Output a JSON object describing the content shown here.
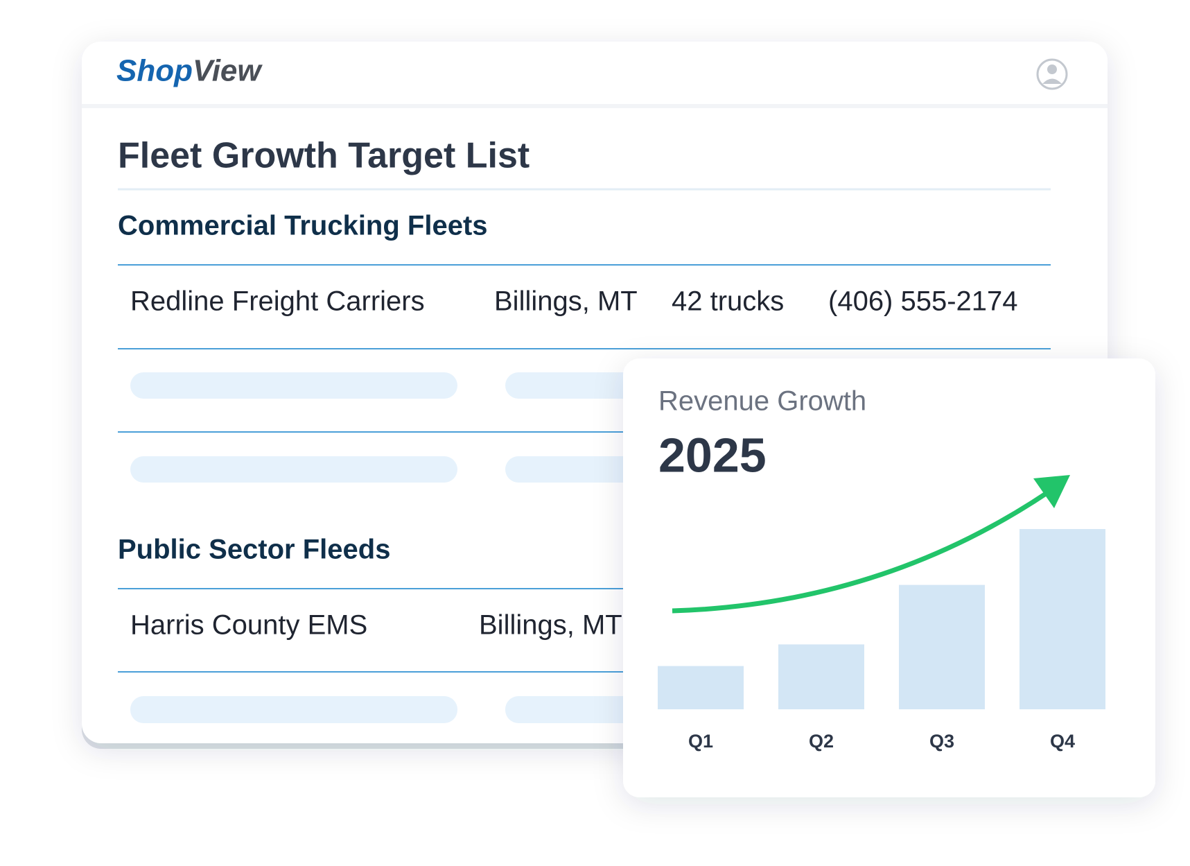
{
  "header": {
    "logo": "ShopView"
  },
  "page": {
    "title": "Fleet Growth Target List",
    "sections": [
      {
        "title": "Commercial Trucking Fleets",
        "rows": [
          [
            "Redline Freight Carriers",
            "Billings, MT",
            "42 trucks",
            "(406) 555-2174"
          ]
        ]
      },
      {
        "title": "Public Sector Fleeds",
        "rows": [
          [
            "Harris County EMS",
            "Billings, MT"
          ]
        ]
      }
    ]
  },
  "chart_data": {
    "type": "bar",
    "title": "Revenue Growth",
    "subtitle": "2025",
    "categories": [
      "Q1",
      "Q2",
      "Q3",
      "Q4"
    ],
    "values": [
      24,
      36,
      69,
      100
    ],
    "color": "#d3e6f5",
    "trend_color": "#22c46a"
  }
}
